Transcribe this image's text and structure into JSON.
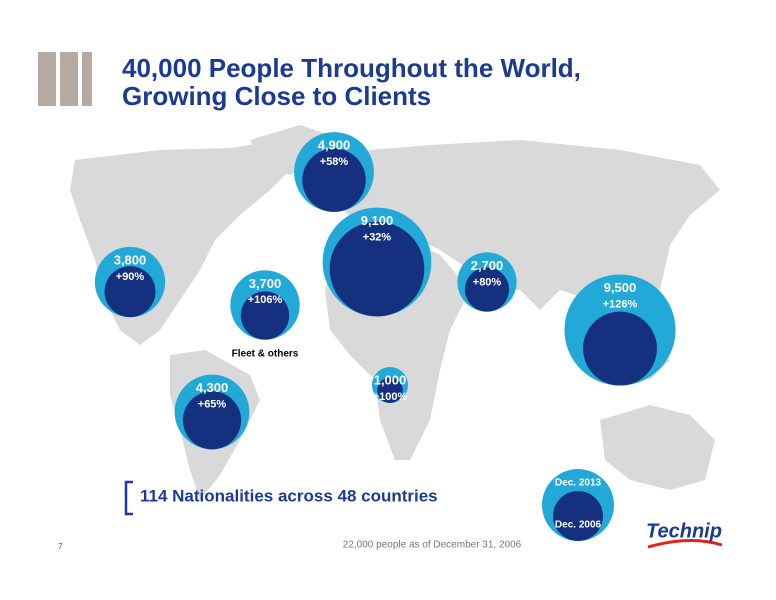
{
  "header": {
    "title_lines": [
      "40,000 People Throughout the World,",
      "Growing Close to Clients"
    ]
  },
  "chart_data": {
    "type": "bubble",
    "categories": [
      null,
      "Fleet & others",
      null,
      null,
      null,
      null,
      null,
      null
    ],
    "values": [
      3800,
      3700,
      4300,
      4900,
      9100,
      1000,
      2700,
      9500
    ],
    "value_labels": [
      "3,800",
      "3,700",
      "4,300",
      "4,900",
      "9,100",
      "1,000",
      "2,700",
      "9,500"
    ],
    "growth": [
      90,
      106,
      65,
      58,
      32,
      100,
      80,
      126
    ],
    "growth_labels": [
      "+90%",
      "+106%",
      "+65%",
      "+58%",
      "+32%",
      "+100%",
      "+80%",
      "+126%"
    ],
    "colors": {
      "outer": "#22a9d8",
      "inner": "#15307f"
    },
    "legend": [
      "Dec. 2013",
      "Dec. 2006"
    ]
  },
  "callout": "114 Nationalities across 48 countries",
  "footnote": "22,000 people as of December 31, 2006",
  "page_number": "7",
  "logo": "Technip"
}
